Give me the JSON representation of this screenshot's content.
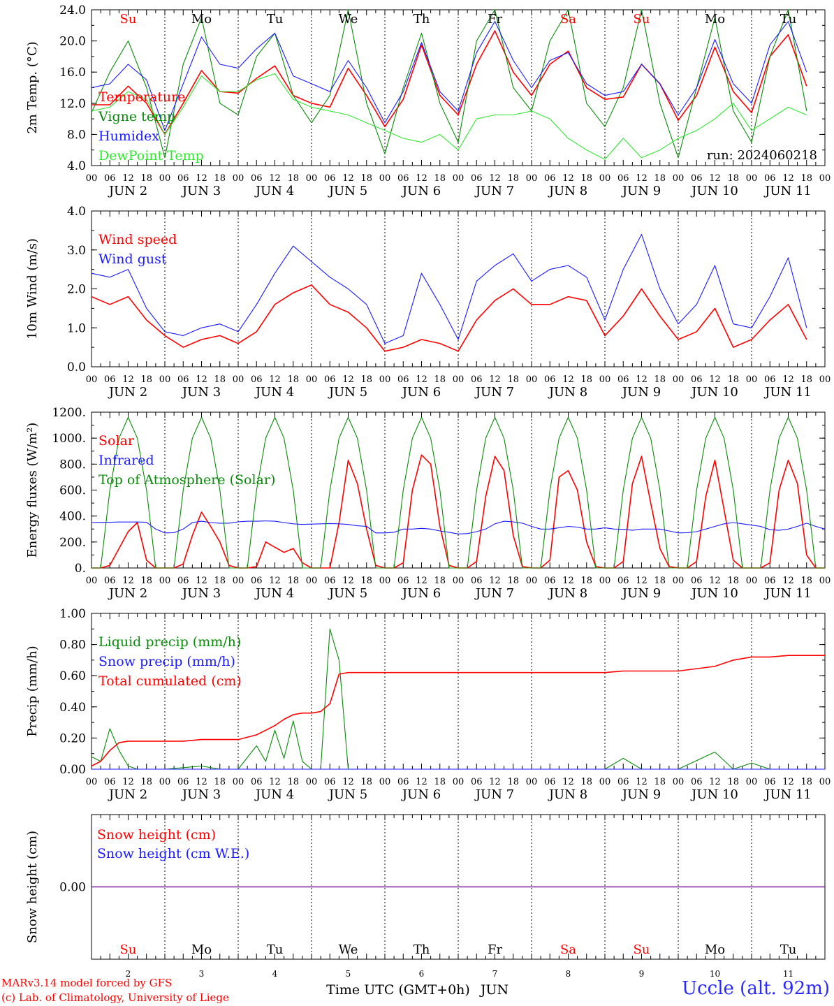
{
  "colors": {
    "red": "#ff0000",
    "green": "#0a8a0a",
    "blue": "#1a1aff",
    "lightgreen": "#32e632",
    "purple": "#7a1a9a"
  },
  "days": [
    "Su",
    "Mo",
    "Tu",
    "We",
    "Th",
    "Fr",
    "Sa",
    "Su",
    "Mo",
    "Tu"
  ],
  "weekend_days": [
    "Sa",
    "Su"
  ],
  "date_labels": [
    "JUN 2",
    "JUN 3",
    "JUN 4",
    "JUN 5",
    "JUN 6",
    "JUN 7",
    "JUN 8",
    "JUN 9",
    "JUN 10",
    "JUN 11"
  ],
  "day_numbers": [
    "2",
    "3",
    "4",
    "5",
    "6",
    "7",
    "8",
    "9",
    "10",
    "11"
  ],
  "hour_ticks": [
    "00",
    "06",
    "12",
    "18"
  ],
  "footer": {
    "model": "MARv3.14 model forced by GFS",
    "copyright": "(c) Lab. of Climatology, University of Liege",
    "xlabel": "Time UTC (GMT+0h)",
    "month": "JUN",
    "station": "Uccle (alt. 92m)"
  },
  "chart_data": [
    {
      "type": "line",
      "ylabel": "2m Temp. (°C)",
      "ylim": [
        4.0,
        24.0
      ],
      "yticks": [
        "4.0",
        "8.0",
        "12.0",
        "16.0",
        "20.0",
        "24.0"
      ],
      "annotation": "run: 2024060218",
      "x_hours": [
        0,
        6,
        12,
        18,
        24,
        30,
        36,
        42,
        48,
        54,
        60,
        66,
        72,
        78,
        84,
        90,
        96,
        102,
        108,
        114,
        120,
        126,
        132,
        138,
        144,
        150,
        156,
        162,
        168,
        174,
        180,
        186,
        192,
        198,
        204,
        210,
        216,
        222,
        228,
        234
      ],
      "series": [
        {
          "name": "Temperature",
          "color": "red",
          "values": [
            11.8,
            11.8,
            14.2,
            12.0,
            8.0,
            12.0,
            16.2,
            13.5,
            13.3,
            15.2,
            16.8,
            13.0,
            12.0,
            11.5,
            16.5,
            13.0,
            9.0,
            12.5,
            19.5,
            13.0,
            10.5,
            17.0,
            21.3,
            16.0,
            13.0,
            17.0,
            18.7,
            14.0,
            12.5,
            12.8,
            17.0,
            14.5,
            9.8,
            13.0,
            19.2,
            13.5,
            10.8,
            18.0,
            20.8,
            14.2
          ]
        },
        {
          "name": "Vigne temp",
          "color": "green",
          "values": [
            10.8,
            16.0,
            20.0,
            14.0,
            5.0,
            17.0,
            23.0,
            12.0,
            10.5,
            18.0,
            21.0,
            13.0,
            9.5,
            13.0,
            24.0,
            12.0,
            5.5,
            14.0,
            21.0,
            12.0,
            7.0,
            20.0,
            25.0,
            14.0,
            11.0,
            20.0,
            24.0,
            12.0,
            9.0,
            14.0,
            24.0,
            12.0,
            5.0,
            14.0,
            23.0,
            11.0,
            7.0,
            18.0,
            24.0,
            11.0
          ]
        },
        {
          "name": "Humidex",
          "color": "blue",
          "values": [
            14.0,
            14.5,
            17.0,
            15.0,
            8.5,
            14.5,
            20.5,
            17.0,
            16.5,
            19.0,
            21.0,
            15.5,
            14.5,
            13.5,
            17.5,
            14.0,
            9.5,
            13.5,
            19.8,
            13.5,
            11.0,
            18.5,
            22.5,
            17.5,
            14.0,
            17.5,
            18.5,
            14.5,
            13.0,
            13.5,
            17.0,
            14.5,
            10.5,
            14.0,
            20.2,
            14.5,
            12.0,
            19.5,
            22.5,
            16.0
          ]
        },
        {
          "name": "DewPoint Temp",
          "color": "lightgreen",
          "values": [
            11.0,
            11.5,
            13.5,
            12.5,
            8.0,
            11.5,
            15.5,
            13.5,
            13.5,
            15.0,
            15.8,
            12.5,
            11.5,
            11.0,
            10.5,
            9.5,
            8.5,
            7.5,
            7.0,
            8.0,
            6.0,
            10.0,
            10.5,
            10.5,
            11.0,
            10.0,
            7.5,
            6.0,
            4.8,
            7.5,
            5.0,
            6.0,
            7.5,
            8.5,
            10.0,
            12.0,
            8.5,
            10.0,
            11.5,
            10.5
          ]
        }
      ]
    },
    {
      "type": "line",
      "ylabel": "10m Wind (m/s)",
      "ylim": [
        0.0,
        4.0
      ],
      "yticks": [
        "0.0",
        "1.0",
        "2.0",
        "3.0",
        "4.0"
      ],
      "x_hours": [
        0,
        6,
        12,
        18,
        24,
        30,
        36,
        42,
        48,
        54,
        60,
        66,
        72,
        78,
        84,
        90,
        96,
        102,
        108,
        114,
        120,
        126,
        132,
        138,
        144,
        150,
        156,
        162,
        168,
        174,
        180,
        186,
        192,
        198,
        204,
        210,
        216,
        222,
        228,
        234
      ],
      "series": [
        {
          "name": "Wind speed",
          "color": "red",
          "values": [
            1.8,
            1.6,
            1.8,
            1.2,
            0.8,
            0.5,
            0.7,
            0.8,
            0.6,
            0.9,
            1.6,
            1.9,
            2.1,
            1.6,
            1.4,
            1.0,
            0.4,
            0.5,
            0.7,
            0.6,
            0.4,
            1.2,
            1.7,
            2.0,
            1.6,
            1.6,
            1.8,
            1.7,
            0.8,
            1.3,
            2.0,
            1.3,
            0.7,
            0.9,
            1.5,
            0.5,
            0.7,
            1.2,
            1.6,
            0.7
          ]
        },
        {
          "name": "Wind gust",
          "color": "blue",
          "values": [
            2.4,
            2.3,
            2.5,
            1.5,
            0.9,
            0.8,
            1.0,
            1.1,
            0.9,
            1.6,
            2.4,
            3.1,
            2.7,
            2.3,
            2.0,
            1.6,
            0.6,
            0.8,
            2.4,
            1.6,
            0.7,
            2.2,
            2.6,
            2.9,
            2.2,
            2.5,
            2.6,
            2.3,
            1.2,
            2.5,
            3.4,
            2.0,
            1.1,
            1.6,
            2.6,
            1.1,
            1.0,
            1.8,
            2.8,
            1.0
          ]
        }
      ]
    },
    {
      "type": "line",
      "ylabel": "Energy fluxes (W/m²)",
      "ylim": [
        0,
        1200
      ],
      "yticks": [
        "0.",
        "200.",
        "400.",
        "600.",
        "800.",
        "1000.",
        "1200."
      ],
      "x_hours": [
        0,
        3,
        6,
        9,
        12,
        15,
        18,
        21,
        24,
        27,
        30,
        33,
        36,
        39,
        42,
        45,
        48,
        51,
        54,
        57,
        60,
        63,
        66,
        69,
        72,
        75,
        78,
        81,
        84,
        87,
        90,
        93,
        96,
        99,
        102,
        105,
        108,
        111,
        114,
        117,
        120,
        123,
        126,
        129,
        132,
        135,
        138,
        141,
        144,
        147,
        150,
        153,
        156,
        159,
        162,
        165,
        168,
        171,
        174,
        177,
        180,
        183,
        186,
        189,
        192,
        195,
        198,
        201,
        204,
        207,
        210,
        213,
        216,
        219,
        222,
        225,
        228,
        231,
        234,
        237,
        240
      ],
      "series": [
        {
          "name": "Solar",
          "color": "red",
          "values": [
            0,
            0,
            20,
            150,
            280,
            350,
            60,
            0,
            0,
            0,
            30,
            250,
            430,
            320,
            200,
            20,
            0,
            0,
            10,
            200,
            160,
            120,
            150,
            40,
            0,
            0,
            0,
            350,
            830,
            650,
            300,
            20,
            0,
            0,
            40,
            600,
            870,
            800,
            320,
            20,
            0,
            0,
            50,
            550,
            860,
            750,
            250,
            10,
            0,
            0,
            60,
            700,
            750,
            600,
            200,
            10,
            0,
            0,
            50,
            650,
            860,
            500,
            150,
            10,
            0,
            0,
            50,
            550,
            830,
            450,
            60,
            0,
            0,
            0,
            40,
            600,
            830,
            650,
            100,
            0,
            0
          ]
        },
        {
          "name": "Infrared",
          "color": "blue",
          "values": [
            350,
            352,
            352,
            354,
            354,
            354,
            352,
            300,
            270,
            272,
            300,
            350,
            360,
            350,
            345,
            345,
            355,
            360,
            360,
            362,
            360,
            350,
            340,
            335,
            338,
            340,
            342,
            340,
            335,
            325,
            320,
            270,
            270,
            275,
            300,
            300,
            305,
            300,
            285,
            275,
            262,
            265,
            280,
            300,
            340,
            360,
            355,
            345,
            320,
            300,
            300,
            310,
            320,
            315,
            300,
            300,
            310,
            300,
            298,
            290,
            300,
            300,
            300,
            285,
            270,
            272,
            280,
            300,
            320,
            340,
            350,
            340,
            330,
            320,
            295,
            290,
            300,
            320,
            345,
            320,
            300
          ]
        },
        {
          "name": "Top of Atmosphere (Solar)",
          "color": "green",
          "values": [
            0,
            0,
            600,
            1000,
            1160,
            1000,
            600,
            0,
            0,
            0,
            600,
            1000,
            1160,
            1000,
            600,
            0,
            0,
            0,
            600,
            1000,
            1160,
            1000,
            600,
            0,
            0,
            0,
            600,
            1000,
            1160,
            1000,
            600,
            0,
            0,
            0,
            600,
            1000,
            1160,
            1000,
            600,
            0,
            0,
            0,
            600,
            1000,
            1160,
            1000,
            600,
            0,
            0,
            0,
            600,
            1000,
            1160,
            1000,
            600,
            0,
            0,
            0,
            600,
            1000,
            1160,
            1000,
            600,
            0,
            0,
            0,
            600,
            1000,
            1160,
            1000,
            600,
            0,
            0,
            0,
            600,
            1000,
            1160,
            1000,
            600,
            0,
            0
          ]
        }
      ]
    },
    {
      "type": "line",
      "ylabel": "Precip (mm/h)",
      "ylim": [
        0.0,
        1.0
      ],
      "yticks": [
        "0.00",
        "0.20",
        "0.40",
        "0.60",
        "0.80",
        "1.00"
      ],
      "x_hours": [
        0,
        3,
        6,
        9,
        12,
        15,
        18,
        24,
        30,
        36,
        42,
        48,
        54,
        57,
        60,
        63,
        66,
        69,
        72,
        75,
        78,
        81,
        84,
        90,
        96,
        108,
        120,
        144,
        168,
        174,
        180,
        192,
        204,
        210,
        216,
        222,
        228,
        234,
        240
      ],
      "series": [
        {
          "name": "Liquid precip (mm/h)",
          "color": "green",
          "values": [
            0.08,
            0.05,
            0.26,
            0.12,
            0.02,
            0.0,
            0.0,
            0.0,
            0.01,
            0.02,
            0.0,
            0.0,
            0.15,
            0.05,
            0.25,
            0.07,
            0.31,
            0.05,
            0.0,
            0.0,
            0.9,
            0.7,
            0.0,
            0.0,
            0.0,
            0.0,
            0.0,
            0.0,
            0.0,
            0.07,
            0.0,
            0.0,
            0.11,
            0.0,
            0.04,
            0.0,
            0.0,
            0.0,
            0.0
          ]
        },
        {
          "name": "Snow precip (mm/h)",
          "color": "blue",
          "values": [
            0,
            0,
            0,
            0,
            0,
            0,
            0,
            0,
            0,
            0,
            0,
            0,
            0,
            0,
            0,
            0,
            0,
            0,
            0,
            0,
            0,
            0,
            0,
            0,
            0,
            0,
            0,
            0,
            0,
            0,
            0,
            0,
            0,
            0,
            0,
            0,
            0,
            0,
            0
          ]
        },
        {
          "name": "Total cumulated (cm)",
          "color": "red",
          "values": [
            0.02,
            0.05,
            0.12,
            0.17,
            0.18,
            0.18,
            0.18,
            0.18,
            0.18,
            0.19,
            0.19,
            0.19,
            0.22,
            0.25,
            0.28,
            0.32,
            0.35,
            0.36,
            0.36,
            0.37,
            0.42,
            0.61,
            0.62,
            0.62,
            0.62,
            0.62,
            0.62,
            0.62,
            0.62,
            0.63,
            0.63,
            0.63,
            0.66,
            0.7,
            0.72,
            0.72,
            0.73,
            0.73,
            0.73
          ]
        }
      ]
    },
    {
      "type": "line",
      "ylabel": "Snow height (cm)",
      "ylim": [
        -1.0,
        1.0
      ],
      "yticks": [
        "0.00"
      ],
      "x_hours": [
        0,
        240
      ],
      "series": [
        {
          "name": "Snow height (cm)",
          "color": "red",
          "values": [
            0,
            0
          ]
        },
        {
          "name": "Snow height (cm W.E.)",
          "color": "blue",
          "values": [
            0,
            0
          ]
        }
      ]
    }
  ]
}
